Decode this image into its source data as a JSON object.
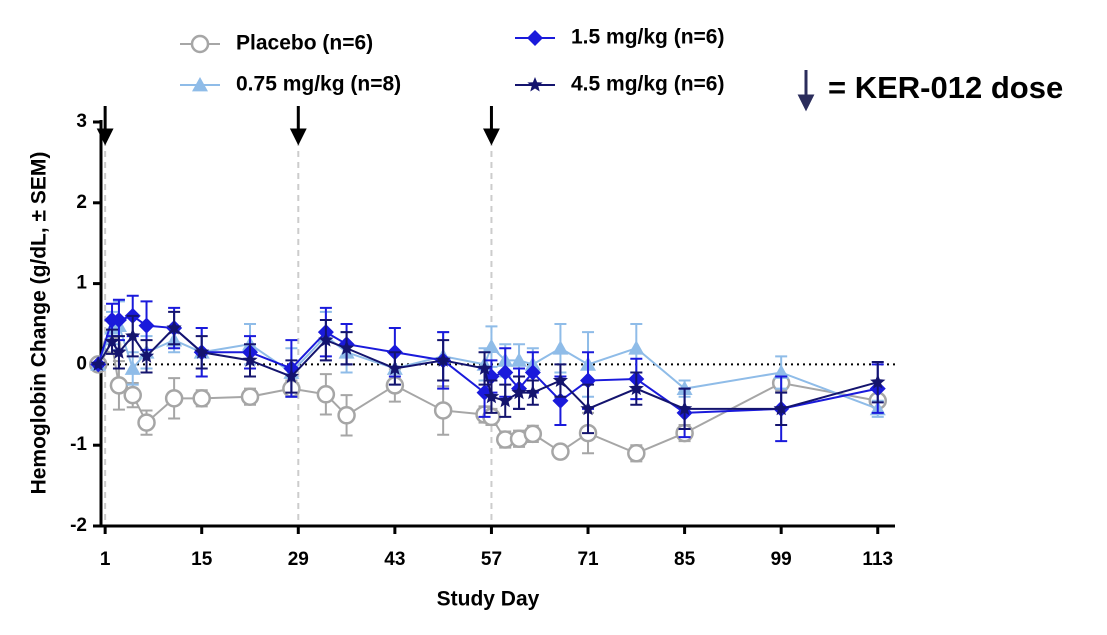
{
  "chart_data": {
    "type": "line",
    "xlabel": "Study Day",
    "ylabel": "Hemoglobin Change (g/dL, ± SEM)",
    "x": [
      0,
      2,
      3,
      5,
      7,
      11,
      15,
      22,
      28,
      33,
      36,
      43,
      50,
      56,
      57,
      59,
      61,
      63,
      67,
      71,
      78,
      85,
      99,
      113
    ],
    "xlim": [
      0.4,
      115.5
    ],
    "xticks": [
      1,
      15,
      29,
      43,
      57,
      71,
      85,
      99,
      113
    ],
    "ylim": [
      -2,
      3
    ],
    "yticks": [
      -2,
      -1,
      0,
      1,
      2,
      3
    ],
    "reference_line": 0,
    "dose_days": [
      1,
      29,
      57
    ],
    "dose_label": "= KER-012 dose",
    "dose_color": "#2b2d5c",
    "series": [
      {
        "name": "Placebo (n=6)",
        "color": "#a6a6a6",
        "marker": "circle",
        "values": [
          0,
          0.24,
          -0.26,
          -0.38,
          -0.72,
          -0.42,
          -0.42,
          -0.4,
          -0.3,
          -0.37,
          -0.63,
          -0.26,
          -0.57,
          -0.62,
          -0.65,
          -0.93,
          -0.92,
          -0.86,
          -1.08,
          -0.85,
          -1.1,
          -0.85,
          -0.23,
          -0.45
        ],
        "errors": [
          0,
          0.1,
          0.3,
          0.15,
          0.15,
          0.25,
          0.1,
          0.1,
          0.1,
          0.25,
          0.25,
          0.2,
          0.3,
          0.1,
          0.1,
          0.1,
          0.1,
          0.1,
          0.05,
          0.25,
          0.1,
          0.1,
          0.1,
          0.15
        ]
      },
      {
        "name": "0.75 mg/kg (n=8)",
        "color": "#8fbce8",
        "marker": "triangle",
        "values": [
          0,
          0.45,
          0.48,
          -0.05,
          0.15,
          0.3,
          0.15,
          0.25,
          -0.1,
          0.35,
          0.15,
          -0.05,
          0.1,
          0,
          0.22,
          0.05,
          0.05,
          0,
          0.2,
          0,
          0.2,
          -0.3,
          -0.1,
          -0.55
        ],
        "errors": [
          0,
          0.2,
          0.3,
          0.2,
          0.2,
          0.15,
          0.3,
          0.25,
          0.3,
          0.3,
          0.25,
          0.2,
          0.3,
          0.2,
          0.25,
          0.2,
          0.2,
          0.2,
          0.3,
          0.4,
          0.3,
          0.1,
          0.2,
          0.1
        ]
      },
      {
        "name": "1.5 mg/kg (n=6)",
        "color": "#1a1adb",
        "marker": "diamond",
        "values": [
          0,
          0.55,
          0.55,
          0.6,
          0.48,
          0.45,
          0.15,
          0.15,
          -0.05,
          0.4,
          0.25,
          0.15,
          0.05,
          -0.35,
          -0.15,
          -0.1,
          -0.3,
          -0.1,
          -0.45,
          -0.2,
          -0.18,
          -0.6,
          -0.55,
          -0.3
        ],
        "errors": [
          0,
          0.2,
          0.25,
          0.25,
          0.3,
          0.25,
          0.3,
          0.2,
          0.35,
          0.3,
          0.25,
          0.3,
          0.35,
          0.3,
          0.2,
          0.3,
          0.25,
          0.25,
          0.3,
          0.35,
          0.25,
          0.3,
          0.4,
          0.3
        ]
      },
      {
        "name": "4.5 mg/kg (n=6)",
        "color": "#14146e",
        "marker": "star",
        "values": [
          0,
          0.28,
          0.15,
          0.35,
          0.1,
          0.45,
          0.15,
          0.05,
          -0.15,
          0.3,
          0.2,
          -0.05,
          0.05,
          -0.05,
          -0.4,
          -0.45,
          -0.35,
          -0.35,
          -0.2,
          -0.55,
          -0.3,
          -0.55,
          -0.55,
          -0.22
        ],
        "errors": [
          0,
          0.15,
          0.2,
          0.25,
          0.2,
          0.2,
          0.2,
          0.2,
          0.2,
          0.25,
          0.2,
          0.2,
          0.25,
          0.2,
          0.2,
          0.2,
          0.2,
          0.15,
          0.2,
          0.3,
          0.2,
          0.25,
          0.2,
          0.25
        ]
      }
    ]
  }
}
